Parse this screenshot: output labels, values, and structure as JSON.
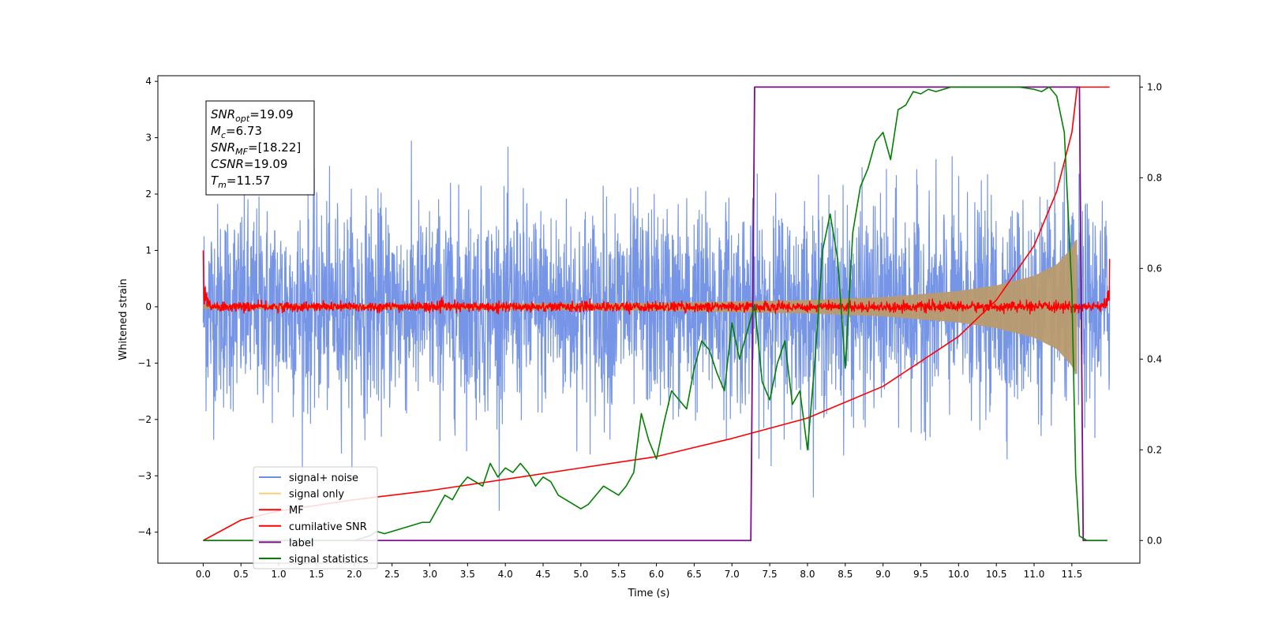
{
  "chart_data": {
    "type": "line",
    "xlabel": "Time (s)",
    "ylabel_left": "Whitened strain",
    "xlim": [
      -0.6,
      12.4
    ],
    "ylim_left": [
      -4.55,
      4.1
    ],
    "ylim_right": [
      -0.05,
      1.025
    ],
    "x_ticks": [
      "0.0",
      "0.5",
      "1.0",
      "1.5",
      "2.0",
      "2.5",
      "3.0",
      "3.5",
      "4.0",
      "4.5",
      "5.0",
      "5.5",
      "6.0",
      "6.5",
      "7.0",
      "7.5",
      "8.0",
      "8.5",
      "9.0",
      "9.5",
      "10.0",
      "10.5",
      "11.0",
      "11.5"
    ],
    "y_ticks_left": [
      "4",
      "3",
      "2",
      "1",
      "0",
      "−1",
      "−2",
      "−3",
      "−4"
    ],
    "y_ticks_right": [
      "1.0",
      "0.8",
      "0.6",
      "0.4",
      "0.2",
      "0.0"
    ],
    "grid": false,
    "legend_position": "lower-left",
    "annotation": {
      "lines": [
        {
          "main": "SNR",
          "sub": "opt",
          "value": "=19.09"
        },
        {
          "main": "M",
          "sub": "c",
          "value": "=6.73"
        },
        {
          "main": "SNR",
          "sub": "MF",
          "value": "=[18.22]"
        },
        {
          "main": "CSNR",
          "sub": "",
          "value": "=19.09"
        },
        {
          "main": "T",
          "sub": "m",
          "value": "=11.57"
        }
      ]
    },
    "noise": {
      "x_start": 0.0,
      "x_end": 12.0,
      "std": 0.75
    },
    "signal": {
      "t_merge": 11.57,
      "envelope_points": [
        [
          0.0,
          0.04
        ],
        [
          3.0,
          0.05
        ],
        [
          6.0,
          0.07
        ],
        [
          8.0,
          0.12
        ],
        [
          9.0,
          0.17
        ],
        [
          10.0,
          0.28
        ],
        [
          10.5,
          0.38
        ],
        [
          11.0,
          0.55
        ],
        [
          11.3,
          0.75
        ],
        [
          11.5,
          1.05
        ],
        [
          11.55,
          1.2
        ]
      ]
    },
    "mf": {
      "x_start": 0.0,
      "x_end": 12.0,
      "std": 0.045,
      "start_value": 1.0,
      "end_value": 0.85
    },
    "cumulative_snr": {
      "x": [
        0.0,
        0.5,
        1.0,
        2.0,
        3.0,
        4.0,
        5.0,
        6.0,
        7.0,
        8.0,
        9.0,
        10.0,
        10.5,
        11.0,
        11.3,
        11.5,
        11.57,
        12.0
      ],
      "y": [
        0.0,
        0.045,
        0.065,
        0.09,
        0.11,
        0.135,
        0.16,
        0.185,
        0.225,
        0.27,
        0.34,
        0.45,
        0.53,
        0.65,
        0.77,
        0.9,
        1.0,
        1.0
      ]
    },
    "label": {
      "x": [
        0.0,
        7.25,
        7.3,
        11.6,
        11.65,
        11.97
      ],
      "y": [
        0.0,
        0.0,
        1.0,
        1.0,
        0.0,
        0.0
      ]
    },
    "signal_statistics": {
      "x": [
        0.0,
        0.5,
        1.0,
        1.5,
        2.0,
        2.1,
        2.2,
        2.3,
        2.4,
        2.5,
        2.6,
        2.7,
        2.8,
        2.9,
        3.0,
        3.1,
        3.2,
        3.3,
        3.4,
        3.5,
        3.6,
        3.7,
        3.8,
        3.9,
        4.0,
        4.1,
        4.2,
        4.3,
        4.4,
        4.5,
        4.6,
        4.7,
        4.8,
        4.9,
        5.0,
        5.1,
        5.2,
        5.3,
        5.4,
        5.5,
        5.6,
        5.7,
        5.8,
        5.9,
        6.0,
        6.1,
        6.2,
        6.3,
        6.4,
        6.5,
        6.6,
        6.7,
        6.8,
        6.9,
        7.0,
        7.1,
        7.2,
        7.3,
        7.4,
        7.5,
        7.6,
        7.7,
        7.8,
        7.9,
        8.0,
        8.1,
        8.2,
        8.3,
        8.4,
        8.5,
        8.6,
        8.7,
        8.8,
        8.9,
        9.0,
        9.1,
        9.2,
        9.3,
        9.4,
        9.5,
        9.6,
        9.7,
        9.8,
        9.9,
        10.0,
        10.2,
        10.4,
        10.6,
        10.8,
        11.0,
        11.1,
        11.2,
        11.3,
        11.4,
        11.5,
        11.55,
        11.6,
        11.65,
        11.7,
        11.8,
        11.9,
        11.97
      ],
      "y": [
        0.0,
        0.0,
        0.0,
        0.0,
        0.0,
        0.005,
        0.01,
        0.02,
        0.015,
        0.02,
        0.025,
        0.03,
        0.035,
        0.04,
        0.04,
        0.07,
        0.1,
        0.09,
        0.12,
        0.14,
        0.13,
        0.12,
        0.17,
        0.14,
        0.16,
        0.15,
        0.17,
        0.15,
        0.12,
        0.14,
        0.13,
        0.1,
        0.09,
        0.08,
        0.07,
        0.08,
        0.1,
        0.12,
        0.11,
        0.1,
        0.12,
        0.15,
        0.28,
        0.22,
        0.18,
        0.26,
        0.33,
        0.31,
        0.29,
        0.38,
        0.44,
        0.42,
        0.37,
        0.33,
        0.48,
        0.4,
        0.46,
        0.52,
        0.35,
        0.31,
        0.39,
        0.44,
        0.3,
        0.33,
        0.2,
        0.4,
        0.64,
        0.72,
        0.62,
        0.38,
        0.68,
        0.78,
        0.82,
        0.88,
        0.9,
        0.84,
        0.95,
        0.96,
        0.99,
        0.985,
        0.995,
        0.99,
        0.995,
        1.0,
        1.0,
        1.0,
        1.0,
        1.0,
        1.0,
        0.995,
        0.99,
        1.0,
        0.98,
        0.9,
        0.55,
        0.15,
        0.01,
        0.005,
        0.0,
        0.0,
        0.0,
        0.0
      ]
    },
    "series": [
      {
        "name": "signal+ noise",
        "color": "#6f8fe6"
      },
      {
        "name": "signal only",
        "color": "#f6cf78"
      },
      {
        "name": "MF",
        "color": "#ff0000"
      },
      {
        "name": "cumilative SNR",
        "color": "#ff0000"
      },
      {
        "name": "label",
        "color": "#7b0f86"
      },
      {
        "name": "signal statistics",
        "color": "#008000"
      }
    ]
  }
}
